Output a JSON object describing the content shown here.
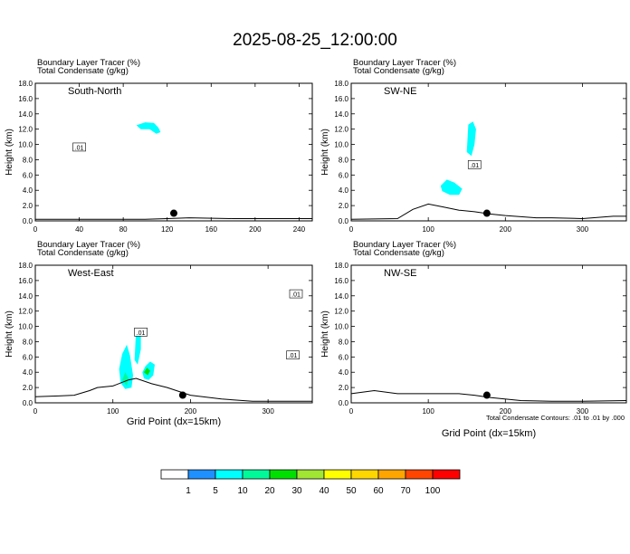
{
  "figure": {
    "title": "2025-08-25_12:00:00",
    "panel_label_line1": "Boundary Layer Tracer   (%)",
    "panel_label_line2": "Total Condensate   (g/kg)",
    "y_axis_label": "Height (km)",
    "x_axis_label": "Grid Point (dx=15km)",
    "contour_note": "Total Condensate Contours: .01 to .01 by .000"
  },
  "colorbar": {
    "labels": [
      "1",
      "5",
      "10",
      "20",
      "30",
      "40",
      "50",
      "60",
      "70",
      "100"
    ],
    "colors": [
      "#ffffff",
      "#1e90ff",
      "#00ffff",
      "#00fa9a",
      "#00e000",
      "#a0e632",
      "#ffff00",
      "#ffd700",
      "#ffa500",
      "#ff4500",
      "#ff0000"
    ]
  },
  "chart_data": [
    {
      "type": "heatmap",
      "name": "South-North",
      "xlim": [
        0,
        252
      ],
      "ylim": [
        0,
        18
      ],
      "xticks": [
        0,
        40,
        80,
        120,
        160,
        200,
        240
      ],
      "yticks": [
        0.0,
        2.0,
        4.0,
        6.0,
        8.0,
        10.0,
        12.0,
        14.0,
        16.0,
        18.0
      ],
      "contour_labels": [
        {
          "text": ".01",
          "x": 40,
          "y": 9.6
        }
      ],
      "marker": {
        "x": 126,
        "y": 1.0
      },
      "terrain": [
        [
          0,
          0.2
        ],
        [
          60,
          0.2
        ],
        [
          100,
          0.2
        ],
        [
          120,
          0.3
        ],
        [
          140,
          0.4
        ],
        [
          180,
          0.3
        ],
        [
          240,
          0.3
        ],
        [
          252,
          0.3
        ]
      ],
      "tracer_regions": [
        {
          "level": 5,
          "points": [
            [
              92,
              12.5
            ],
            [
              100,
              12.9
            ],
            [
              108,
              12.8
            ],
            [
              112,
              12.2
            ],
            [
              114,
              11.6
            ],
            [
              110,
              11.4
            ],
            [
              104,
              12.0
            ],
            [
              96,
              12.0
            ]
          ]
        }
      ]
    },
    {
      "type": "heatmap",
      "name": "SW-NE",
      "xlim": [
        0,
        357
      ],
      "ylim": [
        0,
        18
      ],
      "xticks": [
        0,
        100,
        200,
        300
      ],
      "yticks": [
        0.0,
        2.0,
        4.0,
        6.0,
        8.0,
        10.0,
        12.0,
        14.0,
        16.0,
        18.0
      ],
      "contour_labels": [
        {
          "text": ".01",
          "x": 160,
          "y": 7.3
        }
      ],
      "marker": {
        "x": 176,
        "y": 1.0
      },
      "terrain": [
        [
          0,
          0.2
        ],
        [
          60,
          0.3
        ],
        [
          80,
          1.5
        ],
        [
          100,
          2.2
        ],
        [
          120,
          1.8
        ],
        [
          140,
          1.4
        ],
        [
          160,
          1.2
        ],
        [
          180,
          0.9
        ],
        [
          200,
          0.7
        ],
        [
          240,
          0.4
        ],
        [
          260,
          0.4
        ],
        [
          300,
          0.3
        ],
        [
          340,
          0.6
        ],
        [
          357,
          0.6
        ]
      ],
      "tracer_regions": [
        {
          "level": 5,
          "points": [
            [
              116,
              4.6
            ],
            [
              124,
              5.4
            ],
            [
              134,
              5.0
            ],
            [
              144,
              4.2
            ],
            [
              140,
              3.4
            ],
            [
              128,
              3.4
            ],
            [
              118,
              3.9
            ]
          ]
        },
        {
          "level": 5,
          "points": [
            [
              150,
              9.0
            ],
            [
              152,
              12.6
            ],
            [
              158,
              13.0
            ],
            [
              162,
              12.0
            ],
            [
              160,
              10.0
            ],
            [
              156,
              8.5
            ]
          ]
        }
      ]
    },
    {
      "type": "heatmap",
      "name": "West-East",
      "xlim": [
        0,
        357
      ],
      "ylim": [
        0,
        18
      ],
      "xticks": [
        0,
        100,
        200,
        300
      ],
      "yticks": [
        0.0,
        2.0,
        4.0,
        6.0,
        8.0,
        10.0,
        12.0,
        14.0,
        16.0,
        18.0
      ],
      "contour_labels": [
        {
          "text": ".01",
          "x": 336,
          "y": 14.2
        },
        {
          "text": ".01",
          "x": 136,
          "y": 9.2
        },
        {
          "text": ".01",
          "x": 332,
          "y": 6.2
        }
      ],
      "marker": {
        "x": 190,
        "y": 1.0
      },
      "terrain": [
        [
          0,
          0.8
        ],
        [
          30,
          0.9
        ],
        [
          50,
          1.0
        ],
        [
          70,
          1.6
        ],
        [
          80,
          2.0
        ],
        [
          100,
          2.2
        ],
        [
          120,
          3.0
        ],
        [
          130,
          3.2
        ],
        [
          150,
          2.5
        ],
        [
          170,
          2.0
        ],
        [
          200,
          1.0
        ],
        [
          240,
          0.5
        ],
        [
          280,
          0.2
        ],
        [
          340,
          0.2
        ],
        [
          357,
          0.2
        ]
      ],
      "tracer_regions": [
        {
          "level": 5,
          "points": [
            [
              108,
              4.4
            ],
            [
              112,
              6.4
            ],
            [
              118,
              7.6
            ],
            [
              122,
              6.2
            ],
            [
              126,
              3.6
            ],
            [
              124,
              2.0
            ],
            [
              116,
              1.8
            ],
            [
              110,
              2.6
            ]
          ]
        },
        {
          "level": 5,
          "points": [
            [
              128,
              5.6
            ],
            [
              130,
              9.8
            ],
            [
              136,
              9.6
            ],
            [
              136,
              7.0
            ],
            [
              132,
              5.0
            ]
          ]
        },
        {
          "level": 5,
          "points": [
            [
              138,
              4.0
            ],
            [
              142,
              4.8
            ],
            [
              148,
              5.4
            ],
            [
              154,
              5.0
            ],
            [
              152,
              3.6
            ],
            [
              146,
              3.0
            ],
            [
              140,
              3.2
            ]
          ]
        },
        {
          "level": 10,
          "points": [
            [
              112,
              3.0
            ],
            [
              116,
              4.0
            ],
            [
              120,
              3.2
            ],
            [
              118,
              2.2
            ]
          ]
        },
        {
          "level": 20,
          "points": [
            [
              140,
              4.0
            ],
            [
              144,
              4.6
            ],
            [
              148,
              4.2
            ],
            [
              145,
              3.6
            ]
          ]
        }
      ]
    },
    {
      "type": "heatmap",
      "name": "NW-SE",
      "xlim": [
        0,
        357
      ],
      "ylim": [
        0,
        18
      ],
      "xticks": [
        0,
        100,
        200,
        300
      ],
      "yticks": [
        0.0,
        2.0,
        4.0,
        6.0,
        8.0,
        10.0,
        12.0,
        14.0,
        16.0,
        18.0
      ],
      "contour_labels": [],
      "marker": {
        "x": 176,
        "y": 1.0
      },
      "terrain": [
        [
          0,
          1.2
        ],
        [
          30,
          1.6
        ],
        [
          60,
          1.2
        ],
        [
          100,
          1.2
        ],
        [
          140,
          1.2
        ],
        [
          160,
          1.0
        ],
        [
          180,
          0.7
        ],
        [
          220,
          0.3
        ],
        [
          260,
          0.2
        ],
        [
          300,
          0.2
        ],
        [
          357,
          0.3
        ]
      ],
      "tracer_regions": []
    }
  ]
}
